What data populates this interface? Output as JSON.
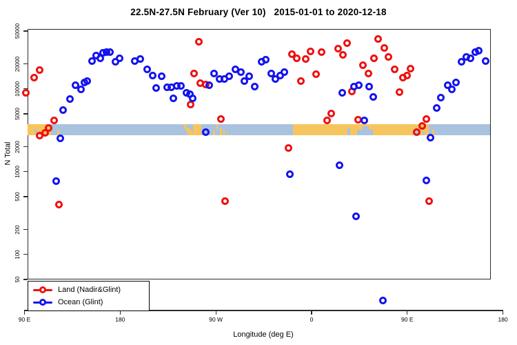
{
  "title": "22.5N-27.5N February (Ver 10)   2015-01-01 to 2020-12-18",
  "chart_data": {
    "type": "scatter",
    "title": "22.5N-27.5N February (Ver 10)   2015-01-01 to 2020-12-18",
    "xlabel": "Longitude (deg E)",
    "ylabel": "N Total",
    "x_axis": {
      "tick_labels": [
        "90 E",
        "180",
        "90 W",
        "0",
        "90 E",
        "180"
      ],
      "tick_lons": [
        90,
        180,
        270,
        360,
        450,
        540
      ],
      "range_deg_e": [
        90,
        540
      ]
    },
    "y_axis": {
      "scale": "log",
      "tick_values": [
        50000,
        20000,
        10000,
        5000,
        2000,
        1000,
        500,
        200,
        100,
        50
      ],
      "tick_labels": [
        "50000",
        "20000",
        "10000",
        "5000",
        "2000",
        "1000",
        "500",
        "200",
        "100",
        "50"
      ],
      "range": [
        50,
        50000
      ]
    },
    "legend": {
      "position": "bottom-left",
      "items": [
        {
          "label": "Land (Nadir&Glint)",
          "color": "#ee1111"
        },
        {
          "label": "Ocean (Glint)",
          "color": "#1414ee"
        }
      ]
    },
    "colors": {
      "land_points": "#ee1111",
      "ocean_points": "#1414ee",
      "map_land": "#f6c55e",
      "map_ocean": "#a9c2de",
      "frame": "#2a2a2a"
    },
    "map_band": {
      "description": "land/ocean strip drawn across the plot near N=3000",
      "n_range": [
        2760,
        3790
      ],
      "land_segments": [
        {
          "from": 90,
          "to": 113,
          "h": 1,
          "skew": 14
        },
        {
          "from": 121,
          "to": 122.5,
          "h": 0.5
        },
        {
          "from": 238.5,
          "to": 240.8,
          "h": 0.95,
          "skew": 28
        },
        {
          "from": 243,
          "to": 245.5,
          "h": 0.6,
          "skew": 28
        },
        {
          "from": 248.5,
          "to": 256.5,
          "h": 1
        },
        {
          "from": 267.5,
          "to": 269,
          "h": 0.45
        },
        {
          "from": 270.5,
          "to": 272,
          "h": 0.5,
          "align": "top"
        },
        {
          "from": 273.5,
          "to": 275.5,
          "h": 0.6
        },
        {
          "from": 277,
          "to": 278.5,
          "h": 0.5
        },
        {
          "from": 280,
          "to": 281.2,
          "h": 0.35
        },
        {
          "from": 342.5,
          "to": 470,
          "h": 1
        },
        {
          "from": 473.5,
          "to": 475.2,
          "h": 0.5
        }
      ],
      "ocean_notches": [
        {
          "from": 98.5,
          "to": 100.5,
          "h": 0.55,
          "skew": 25
        },
        {
          "from": 394,
          "to": 396.5,
          "h": 0.6
        },
        {
          "from": 403,
          "to": 418,
          "h": 0.5
        },
        {
          "from": 408,
          "to": 414,
          "h": 0.78
        },
        {
          "from": 455,
          "to": 462,
          "h": 0.45
        },
        {
          "from": 464.5,
          "to": 466.5,
          "h": 0.3
        }
      ]
    },
    "series": [
      {
        "name": "Land (Nadir&Glint)",
        "color": "#ee1111",
        "points": [
          [
            91,
            8900
          ],
          [
            99.2,
            13700
          ],
          [
            104.4,
            16900
          ],
          [
            104,
            2740
          ],
          [
            109.3,
            2930
          ],
          [
            113,
            3400
          ],
          [
            117.6,
            4170
          ],
          [
            122.7,
            400
          ],
          [
            246,
            6500
          ],
          [
            249.6,
            15400
          ],
          [
            253.9,
            37300
          ],
          [
            255.6,
            11700
          ],
          [
            260.2,
            11250
          ],
          [
            274.9,
            4350
          ],
          [
            278.8,
            440
          ],
          [
            338.2,
            1950
          ],
          [
            341.4,
            26300
          ],
          [
            345.8,
            23500
          ],
          [
            349.7,
            12400
          ],
          [
            354.8,
            22900
          ],
          [
            359.2,
            28200
          ],
          [
            364.1,
            15100
          ],
          [
            369.1,
            27900
          ],
          [
            374.9,
            4180
          ],
          [
            378.6,
            5050
          ],
          [
            385.1,
            30400
          ],
          [
            389.4,
            25700
          ],
          [
            393.3,
            35600
          ],
          [
            397.7,
            9400
          ],
          [
            403.7,
            4270
          ],
          [
            408,
            19400
          ],
          [
            413.2,
            15300
          ],
          [
            418.8,
            23500
          ],
          [
            422.4,
            40000
          ],
          [
            428.3,
            31200
          ],
          [
            432.2,
            24400
          ],
          [
            438.3,
            17200
          ],
          [
            442.6,
            9100
          ],
          [
            445.6,
            13700
          ],
          [
            449.5,
            14600
          ],
          [
            452.8,
            17500
          ],
          [
            458.7,
            3000
          ],
          [
            464.3,
            3600
          ],
          [
            468,
            4370
          ],
          [
            470.6,
            440
          ]
        ]
      },
      {
        "name": "Ocean (Glint)",
        "color": "#1414ee",
        "points": [
          [
            119.5,
            775
          ],
          [
            124,
            2550
          ],
          [
            126,
            5600
          ],
          [
            132.9,
            7600
          ],
          [
            137.7,
            11100
          ],
          [
            143,
            9800
          ],
          [
            146.3,
            11900
          ],
          [
            149.1,
            12400
          ],
          [
            153.4,
            21900
          ],
          [
            157.1,
            25500
          ],
          [
            161,
            23400
          ],
          [
            164.2,
            27500
          ],
          [
            167,
            28000
          ],
          [
            170.7,
            28000
          ],
          [
            175.7,
            21300
          ],
          [
            179.3,
            23500
          ],
          [
            194,
            21500
          ],
          [
            199,
            23200
          ],
          [
            205.3,
            17100
          ],
          [
            210.3,
            14400
          ],
          [
            214,
            10200
          ],
          [
            219,
            14200
          ],
          [
            224,
            10500
          ],
          [
            228,
            10500
          ],
          [
            230.2,
            7750
          ],
          [
            233.4,
            10800
          ],
          [
            237,
            10800
          ],
          [
            242.5,
            8950
          ],
          [
            245.3,
            8600
          ],
          [
            248.1,
            7750
          ],
          [
            260.4,
            2990
          ],
          [
            263.5,
            11000
          ],
          [
            268,
            15400
          ],
          [
            273.3,
            13300
          ],
          [
            277.7,
            13200
          ],
          [
            282.4,
            14100
          ],
          [
            288.5,
            17200
          ],
          [
            293.4,
            16000
          ],
          [
            297.1,
            12400
          ],
          [
            301.5,
            14300
          ],
          [
            306.4,
            10600
          ],
          [
            312.9,
            21100
          ],
          [
            316.8,
            22600
          ],
          [
            322,
            15400
          ],
          [
            325.9,
            13300
          ],
          [
            330.2,
            14400
          ],
          [
            334.5,
            16000
          ],
          [
            339.3,
            930
          ],
          [
            386.4,
            1190
          ],
          [
            388.6,
            8900
          ],
          [
            400.2,
            10700
          ],
          [
            402,
            290
          ],
          [
            404.6,
            11000
          ],
          [
            409.5,
            4180
          ],
          [
            413.9,
            10600
          ],
          [
            418.2,
            8050
          ],
          [
            426.8,
            28
          ],
          [
            468,
            780
          ],
          [
            471.7,
            2580
          ],
          [
            477.5,
            5870
          ],
          [
            481.4,
            7800
          ],
          [
            487.9,
            11000
          ],
          [
            492.2,
            9970
          ],
          [
            495.9,
            11900
          ],
          [
            501.3,
            21300
          ],
          [
            505.6,
            24500
          ],
          [
            509.5,
            23400
          ],
          [
            513.8,
            27800
          ],
          [
            517.4,
            28700
          ],
          [
            523.9,
            21500
          ]
        ]
      }
    ]
  }
}
